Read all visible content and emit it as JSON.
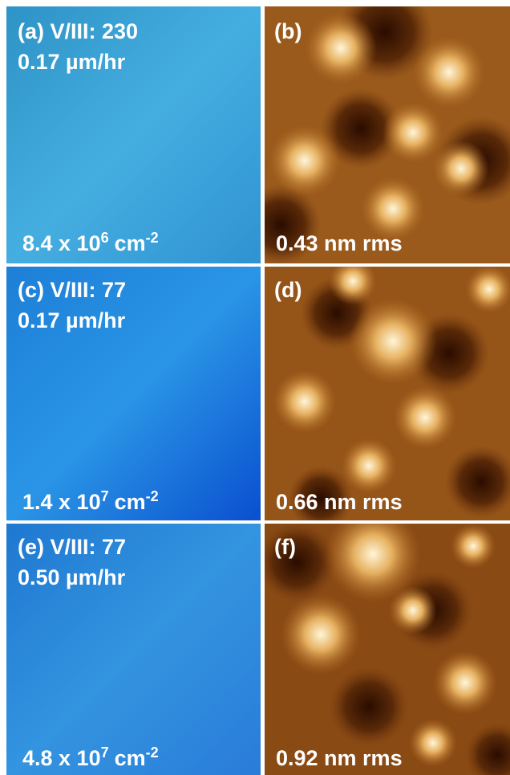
{
  "optical_panels": [
    {
      "label": "(a) V/III: 230",
      "rate": "0.17 µm/hr",
      "density": {
        "base": "8.4 x 10",
        "exponent": "6",
        "unit": "cm",
        "unit_exponent": "-2"
      }
    },
    {
      "label": "(c) V/III: 77",
      "rate": "0.17 µm/hr",
      "density": {
        "base": "1.4 x 10",
        "exponent": "7",
        "unit": "cm",
        "unit_exponent": "-2"
      }
    },
    {
      "label": "(e) V/III: 77",
      "rate": "0.50 µm/hr",
      "density": {
        "base": "4.8 x 10",
        "exponent": "7",
        "unit": "cm",
        "unit_exponent": "-2"
      }
    }
  ],
  "afm_panels": [
    {
      "label": "(b)",
      "roughness": "0.43 nm rms"
    },
    {
      "label": "(d)",
      "roughness": "0.66 nm rms"
    },
    {
      "label": "(f)",
      "roughness": "0.92 nm rms"
    }
  ]
}
